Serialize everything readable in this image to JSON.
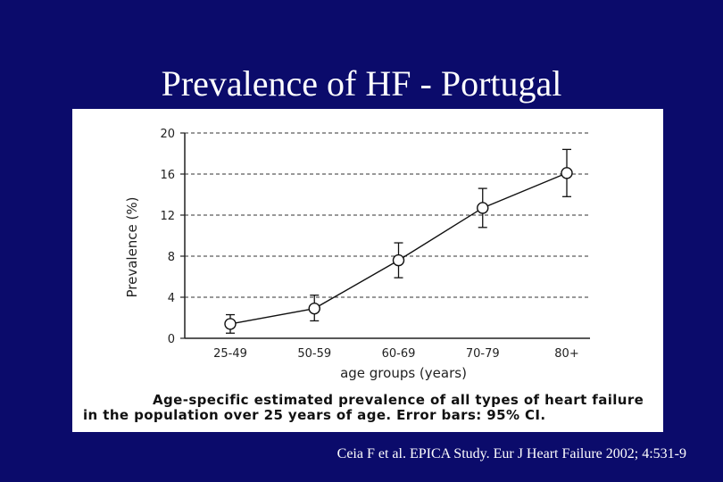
{
  "slide": {
    "title": "Prevalence of HF - Portugal",
    "citation": "Ceia F et al. EPICA Study. Eur J Heart Failure 2002; 4:531-9",
    "background_color": "#0b0b6b"
  },
  "figure": {
    "caption_line1": "Age-specific estimated prevalence of all types of heart failure",
    "caption_line2": "in the population over 25 years of age. Error bars: 95% CI."
  },
  "chart_data": {
    "type": "line",
    "title": "",
    "xlabel": "age groups (years)",
    "ylabel": "Prevalence (%)",
    "categories": [
      "25-49",
      "50-59",
      "60-69",
      "70-79",
      "80+"
    ],
    "y_ticks": [
      "0",
      "4",
      "8",
      "12",
      "16",
      "20"
    ],
    "ylim": [
      0,
      20
    ],
    "grid": "horizontal dashed",
    "series": [
      {
        "values": [
          1.4,
          2.9,
          7.6,
          12.7,
          16.1
        ],
        "ci_low": [
          0.5,
          1.7,
          5.9,
          10.8,
          13.8
        ],
        "ci_high": [
          2.3,
          4.2,
          9.3,
          14.6,
          18.4
        ]
      }
    ]
  }
}
